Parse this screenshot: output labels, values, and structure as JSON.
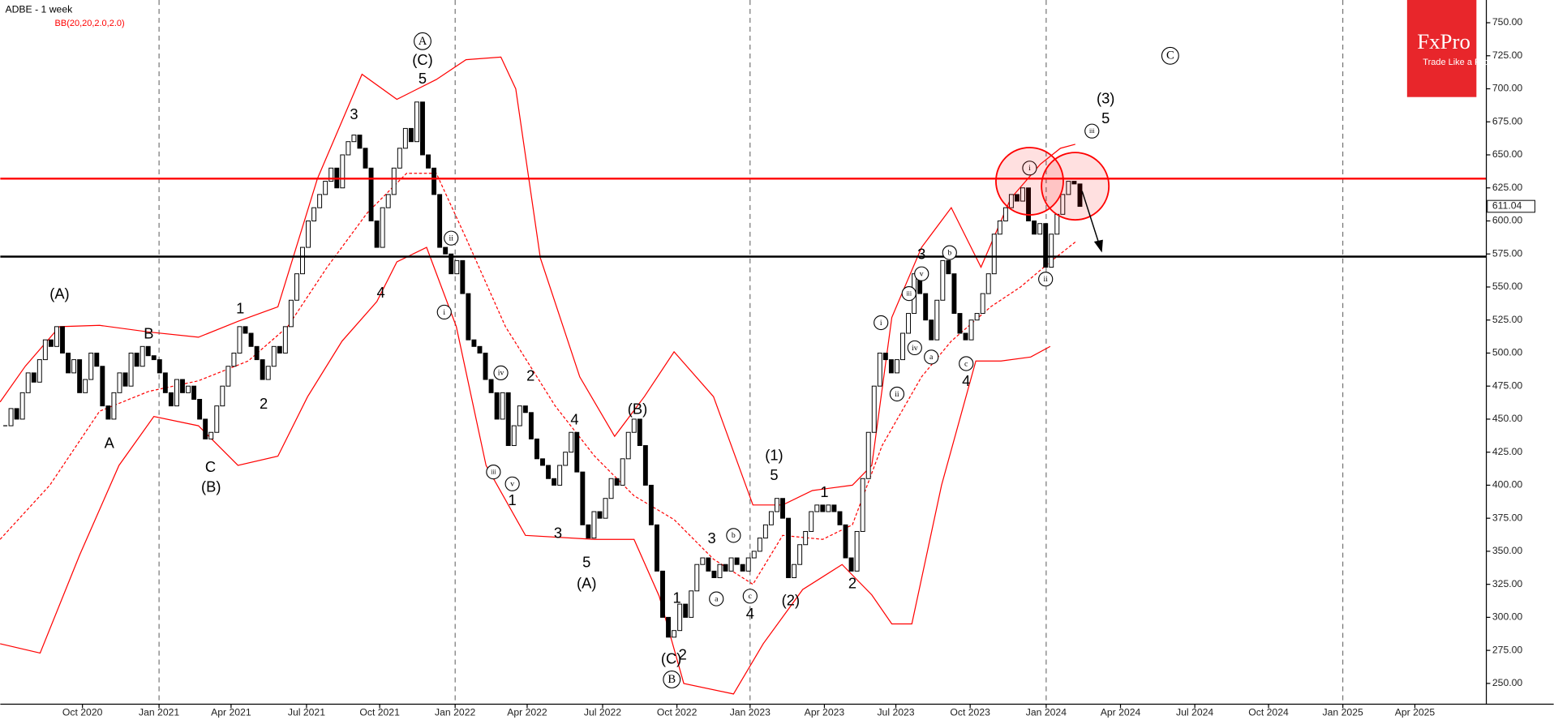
{
  "chart_data": {
    "type": "candlestick",
    "title": "ADBE - 1 week",
    "indicator": "BB(20,20,2.0,2.0)",
    "logo": {
      "name": "FxPro",
      "tagline": "Trade Like a Pro"
    },
    "up_color": "#ffffff",
    "down_color": "#000000",
    "values": [
      445,
      458,
      450,
      470,
      485,
      478,
      495,
      510,
      505,
      520,
      500,
      485,
      495,
      470,
      480,
      500,
      490,
      460,
      450,
      470,
      485,
      475,
      500,
      490,
      505,
      498,
      495,
      485,
      470,
      460,
      480,
      470,
      475,
      465,
      450,
      435,
      440,
      460,
      475,
      490,
      500,
      520,
      515,
      505,
      495,
      480,
      490,
      505,
      500,
      520,
      540,
      560,
      580,
      600,
      610,
      620,
      630,
      640,
      625,
      650,
      660,
      665,
      655,
      640,
      600,
      580,
      610,
      620,
      640,
      655,
      670,
      660,
      690,
      650,
      640,
      620,
      580,
      575,
      560,
      570,
      545,
      510,
      505,
      500,
      480,
      470,
      450,
      470,
      430,
      445,
      460,
      455,
      435,
      420,
      415,
      405,
      400,
      415,
      425,
      440,
      410,
      370,
      360,
      380,
      375,
      390,
      405,
      400,
      420,
      440,
      450,
      430,
      400,
      370,
      335,
      300,
      285,
      290,
      310,
      300,
      320,
      340,
      345,
      335,
      330,
      340,
      335,
      345,
      340,
      335,
      345,
      350,
      360,
      370,
      380,
      390,
      375,
      330,
      340,
      355,
      365,
      380,
      385,
      380,
      385,
      380,
      370,
      345,
      335,
      365,
      405,
      440,
      475,
      500,
      495,
      485,
      495,
      515,
      530,
      560,
      545,
      525,
      510,
      540,
      570,
      560,
      530,
      515,
      510,
      525,
      530,
      545,
      560,
      590,
      600,
      610,
      620,
      615,
      625,
      600,
      590,
      598,
      565,
      590,
      605,
      620,
      630,
      628,
      611
    ],
    "bands": [
      {
        "color": "#ff0000",
        "dashed": false,
        "x": [
          -0.9,
          3.5,
          9.5,
          16.5,
          25.1,
          33.8,
          40.7,
          47.7,
          54.6,
          62.4,
          68.5,
          75.4,
          80.6,
          86.7,
          89.3,
          93.6,
          100.5,
          106.6,
          111.8,
          117,
          123.9,
          130.8,
          136,
          141.2,
          148.2,
          151.6,
          155.1,
          160.3,
          165.5,
          170.7,
          175.9,
          181.1,
          184.6,
          187.2
        ],
        "values": [
          463,
          490,
          520,
          521,
          516,
          512,
          524,
          535,
          632,
          711,
          692,
          707,
          722,
          724,
          700,
          572,
          482,
          437,
          467,
          501,
          467,
          385,
          385,
          396,
          400,
          415,
          527,
          580,
          610,
          565,
          617,
          643,
          655,
          658
        ]
      },
      {
        "color": "#ff0000",
        "dashed": true,
        "x": [
          -0.9,
          7.8,
          16.5,
          25.1,
          33.8,
          42.5,
          49.4,
          56.3,
          63.3,
          70.2,
          75.4,
          80.6,
          87.5,
          96.2,
          103.1,
          110,
          117,
          123.9,
          130.8,
          136,
          143,
          148.2,
          153.4,
          160.3,
          165.5,
          172.4,
          177.6,
          182.8,
          187.2
        ],
        "values": [
          359,
          400,
          456,
          471,
          479,
          494,
          520,
          565,
          606,
          636,
          636,
          587,
          520,
          460,
          422,
          392,
          374,
          344,
          325,
          362,
          359,
          370,
          430,
          482,
          509,
          535,
          550,
          569,
          584
        ]
      },
      {
        "color": "#ff0000",
        "dashed": false,
        "x": [
          -0.9,
          6.1,
          13,
          19.9,
          26,
          33.8,
          40.7,
          47.7,
          52.9,
          58.9,
          65,
          68.5,
          73.7,
          78.9,
          84.1,
          91,
          103.1,
          110,
          114.4,
          118.7,
          127.4,
          132.6,
          139.5,
          146.4,
          151.6,
          155.1,
          158.6,
          163.8,
          169.8,
          174.2,
          179.4,
          182.8
        ],
        "values": [
          280,
          273,
          347,
          415,
          452,
          445,
          415,
          422,
          467,
          509,
          539,
          569,
          580,
          520,
          415,
          362,
          359,
          359,
          316,
          250,
          242,
          280,
          321,
          340,
          317,
          295,
          295,
          400,
          494,
          494,
          497,
          505
        ]
      }
    ],
    "hlines": [
      {
        "value": 632,
        "color": "#ff0000"
      },
      {
        "value": 573,
        "color": "#000000"
      }
    ],
    "last_price": 611.04,
    "annotations": [
      {
        "text": "(A)",
        "x": 9.5,
        "y": 544,
        "circled": false
      },
      {
        "text": "A",
        "x": 18.2,
        "y": 431,
        "circled": false
      },
      {
        "text": "B",
        "x": 25.1,
        "y": 514,
        "circled": false
      },
      {
        "text": "C",
        "x": 35.9,
        "y": 413,
        "circled": false
      },
      {
        "text": "(B)",
        "x": 36,
        "y": 398,
        "circled": false
      },
      {
        "text": "1",
        "x": 41.1,
        "y": 533,
        "circled": false
      },
      {
        "text": "2",
        "x": 45.2,
        "y": 461,
        "circled": false
      },
      {
        "text": "3",
        "x": 61,
        "y": 680,
        "circled": false
      },
      {
        "text": "4",
        "x": 65.7,
        "y": 545,
        "circled": false
      },
      {
        "text": "A",
        "x": 73,
        "y": 736,
        "circled": true
      },
      {
        "text": "(C)",
        "x": 73,
        "y": 721,
        "circled": false
      },
      {
        "text": "5",
        "x": 73,
        "y": 707,
        "circled": false
      },
      {
        "text": "ii",
        "x": 78,
        "y": 587,
        "circled": true
      },
      {
        "text": "i",
        "x": 76.8,
        "y": 531,
        "circled": true
      },
      {
        "text": "iv",
        "x": 86.7,
        "y": 485,
        "circled": true
      },
      {
        "text": "2",
        "x": 91.9,
        "y": 482,
        "circled": false
      },
      {
        "text": "iii",
        "x": 85.4,
        "y": 410,
        "circled": true
      },
      {
        "text": "v",
        "x": 88.7,
        "y": 401,
        "circled": true
      },
      {
        "text": "1",
        "x": 88.7,
        "y": 388,
        "circled": false
      },
      {
        "text": "3",
        "x": 96.7,
        "y": 363,
        "circled": false
      },
      {
        "text": "4",
        "x": 99.6,
        "y": 449,
        "circled": false
      },
      {
        "text": "5",
        "x": 101.7,
        "y": 341,
        "circled": false
      },
      {
        "text": "(A)",
        "x": 101.7,
        "y": 325,
        "circled": false
      },
      {
        "text": "(B)",
        "x": 110.6,
        "y": 457,
        "circled": false
      },
      {
        "text": "1",
        "x": 117.5,
        "y": 314,
        "circled": false
      },
      {
        "text": "2",
        "x": 118.5,
        "y": 271,
        "circled": false
      },
      {
        "text": "(C)",
        "x": 116.5,
        "y": 268,
        "circled": false
      },
      {
        "text": "B",
        "x": 116.6,
        "y": 253,
        "circled": true
      },
      {
        "text": "3",
        "x": 123.6,
        "y": 359,
        "circled": false
      },
      {
        "text": "a",
        "x": 124.4,
        "y": 314,
        "circled": true
      },
      {
        "text": "b",
        "x": 127.4,
        "y": 362,
        "circled": true
      },
      {
        "text": "c",
        "x": 130.3,
        "y": 316,
        "circled": true
      },
      {
        "text": "4",
        "x": 130.3,
        "y": 302,
        "circled": false
      },
      {
        "text": "(1)",
        "x": 134.5,
        "y": 422,
        "circled": false
      },
      {
        "text": "5",
        "x": 134.5,
        "y": 407,
        "circled": false
      },
      {
        "text": "1",
        "x": 143.3,
        "y": 394,
        "circled": false
      },
      {
        "text": "(2)",
        "x": 137.4,
        "y": 312,
        "circled": false
      },
      {
        "text": "2",
        "x": 148.2,
        "y": 325,
        "circled": false
      },
      {
        "text": "i",
        "x": 153.2,
        "y": 523,
        "circled": true
      },
      {
        "text": "ii",
        "x": 156,
        "y": 469,
        "circled": true
      },
      {
        "text": "iv",
        "x": 159.1,
        "y": 504,
        "circled": true
      },
      {
        "text": "a",
        "x": 162,
        "y": 497,
        "circled": true
      },
      {
        "text": "iii",
        "x": 158.1,
        "y": 545,
        "circled": true
      },
      {
        "text": "v",
        "x": 160.3,
        "y": 560,
        "circled": true
      },
      {
        "text": "3",
        "x": 160.3,
        "y": 574,
        "circled": false
      },
      {
        "text": "b",
        "x": 165.2,
        "y": 576,
        "circled": true
      },
      {
        "text": "c",
        "x": 168.1,
        "y": 492,
        "circled": true
      },
      {
        "text": "4",
        "x": 168.1,
        "y": 478,
        "circled": false
      },
      {
        "text": "i",
        "x": 179.2,
        "y": 640,
        "circled": true
      },
      {
        "text": "ii",
        "x": 182,
        "y": 556,
        "circled": true
      },
      {
        "text": "iii",
        "x": 190.1,
        "y": 668,
        "circled": true
      },
      {
        "text": "5",
        "x": 192.5,
        "y": 677,
        "circled": false
      },
      {
        "text": "(3)",
        "x": 192.5,
        "y": 692,
        "circled": false
      },
      {
        "text": "C",
        "x": 203.8,
        "y": 725,
        "circled": true
      }
    ],
    "xlim": [
      -0.87,
      259.1
    ],
    "ylim": [
      234.3,
      767.2
    ],
    "xticks": [
      {
        "value": 13.5,
        "label": "Oct 2020"
      },
      {
        "value": 26.9,
        "label": "Jan 2021"
      },
      {
        "value": 39.5,
        "label": "Apr 2021"
      },
      {
        "value": 52.7,
        "label": "Jul 2021"
      },
      {
        "value": 65.5,
        "label": "Oct 2021"
      },
      {
        "value": 78.7,
        "label": "Jan 2022"
      },
      {
        "value": 91.3,
        "label": "Apr 2022"
      },
      {
        "value": 104.5,
        "label": "Jul 2022"
      },
      {
        "value": 117.5,
        "label": "Oct 2022"
      },
      {
        "value": 130.3,
        "label": "Jan 2023"
      },
      {
        "value": 143.3,
        "label": "Apr 2023"
      },
      {
        "value": 155.8,
        "label": "Jul 2023"
      },
      {
        "value": 168.8,
        "label": "Oct 2023"
      },
      {
        "value": 182.1,
        "label": "Jan 2024"
      },
      {
        "value": 195.1,
        "label": "Apr 2024"
      },
      {
        "value": 208.1,
        "label": "Jul 2024"
      },
      {
        "value": 221,
        "label": "Oct 2024"
      },
      {
        "value": 234,
        "label": "Jan 2025"
      },
      {
        "value": 246.6,
        "label": "Apr 2025"
      }
    ],
    "yticks": [
      {
        "value": 250,
        "label": "250.00"
      },
      {
        "value": 275,
        "label": "275.00"
      },
      {
        "value": 300,
        "label": "300.00"
      },
      {
        "value": 325,
        "label": "325.00"
      },
      {
        "value": 350,
        "label": "350.00"
      },
      {
        "value": 375,
        "label": "375.00"
      },
      {
        "value": 400,
        "label": "400.00"
      },
      {
        "value": 425,
        "label": "425.00"
      },
      {
        "value": 450,
        "label": "450.00"
      },
      {
        "value": 475,
        "label": "475.00"
      },
      {
        "value": 500,
        "label": "500.00"
      },
      {
        "value": 525,
        "label": "525.00"
      },
      {
        "value": 550,
        "label": "550.00"
      },
      {
        "value": 575,
        "label": "575.00"
      },
      {
        "value": 600,
        "label": "600.00"
      },
      {
        "value": 625,
        "label": "625.00"
      },
      {
        "value": 650,
        "label": "650.00"
      },
      {
        "value": 675,
        "label": "675.00"
      },
      {
        "value": 700,
        "label": "700.00"
      },
      {
        "value": 725,
        "label": "725.00"
      },
      {
        "value": 750,
        "label": "750.00"
      }
    ]
  }
}
